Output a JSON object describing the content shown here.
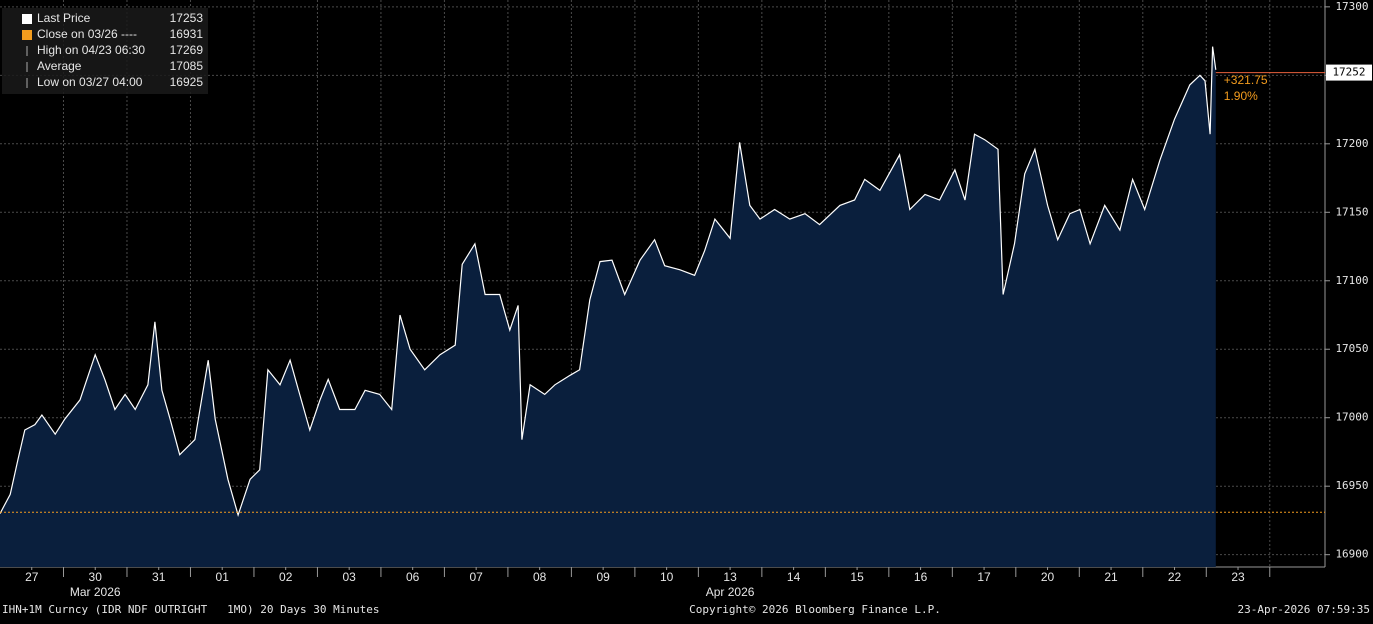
{
  "chart_data": {
    "type": "line",
    "series": [
      {
        "name": "Last Price",
        "color": "#ffffff",
        "fill": "#0a1f3d",
        "x": [
          0,
          0.16,
          0.28,
          0.39,
          0.55,
          0.66,
          0.87,
          1.02,
          1.26,
          1.5,
          1.65,
          1.81,
          1.97,
          2.13,
          2.33,
          2.44,
          2.55,
          2.68,
          2.83,
          3.07,
          3.28,
          3.39,
          3.59,
          3.75,
          3.94,
          4.09,
          4.22,
          4.41,
          4.57,
          4.72,
          4.88,
          5.04,
          5.17,
          5.35,
          5.59,
          5.75,
          5.98,
          6.17,
          6.3,
          6.46,
          6.69,
          6.93,
          7.17,
          7.28,
          7.48,
          7.64,
          7.87,
          8.03,
          8.16,
          8.22,
          8.35,
          8.58,
          8.74,
          8.98,
          9.13,
          9.29,
          9.45,
          9.64,
          9.84,
          10.08,
          10.31,
          10.47,
          10.71,
          10.94,
          11.1,
          11.26,
          11.5,
          11.65,
          11.81,
          11.97,
          12.2,
          12.44,
          12.68,
          12.91,
          13.23,
          13.46,
          13.62,
          13.86,
          14.17,
          14.33,
          14.57,
          14.8,
          15.04,
          15.2,
          15.35,
          15.51,
          15.72,
          15.8,
          15.98,
          16.14,
          16.3,
          16.5,
          16.66,
          16.85,
          17.01,
          17.17,
          17.4,
          17.64,
          17.84,
          18.03,
          18.27,
          18.5,
          18.74,
          18.9,
          18.98,
          19.06,
          19.1,
          19.15
        ],
        "values": [
          16930,
          16944,
          16969,
          16991,
          16995,
          17002,
          16988,
          16999,
          17013,
          17046,
          17028,
          17006,
          17017,
          17006,
          17024,
          17070,
          17020,
          16999,
          16973,
          16984,
          17042,
          16999,
          16955,
          16929,
          16955,
          16962,
          17035,
          17024,
          17042,
          17017,
          16991,
          17013,
          17028,
          17006,
          17006,
          17020,
          17017,
          17006,
          17075,
          17050,
          17035,
          17046,
          17053,
          17112,
          17127,
          17090,
          17090,
          17064,
          17082,
          16984,
          17024,
          17017,
          17024,
          17031,
          17035,
          17086,
          17114,
          17115,
          17090,
          17115,
          17130,
          17111,
          17108,
          17104,
          17122,
          17145,
          17131,
          17201,
          17155,
          17145,
          17152,
          17145,
          17149,
          17141,
          17155,
          17159,
          17174,
          17166,
          17192,
          17152,
          17163,
          17159,
          17181,
          17159,
          17207,
          17203,
          17196,
          17090,
          17127,
          17178,
          17196,
          17155,
          17130,
          17149,
          17152,
          17127,
          17155,
          17137,
          17174,
          17152,
          17188,
          17218,
          17243,
          17250,
          17246,
          17207,
          17271,
          17254
        ]
      }
    ],
    "legend": [
      {
        "name": "Last Price",
        "value": 17253,
        "color": "#ffffff"
      },
      {
        "name": "Close on 03/26 ----",
        "value": 16931,
        "color": "#f39c1e"
      },
      {
        "name": "High on 04/23 06:30",
        "value": 17269
      },
      {
        "name": "Average",
        "value": 17085
      },
      {
        "name": "Low on 03/27 04:00",
        "value": 16925
      }
    ],
    "last_price_tag": 17252,
    "change": "+321.75",
    "change_pct": "1.90%",
    "xlim": [
      0,
      20.87
    ],
    "ylim": [
      16891,
      17305
    ],
    "yticks": [
      16900,
      16950,
      17000,
      17050,
      17100,
      17150,
      17200,
      17250,
      17300
    ],
    "xticks": [
      {
        "value": 0.5,
        "label": "27"
      },
      {
        "value": 1.5,
        "label": "30"
      },
      {
        "value": 2.5,
        "label": "31"
      },
      {
        "value": 3.5,
        "label": "01"
      },
      {
        "value": 4.5,
        "label": "02"
      },
      {
        "value": 5.5,
        "label": "03"
      },
      {
        "value": 6.5,
        "label": "06"
      },
      {
        "value": 7.5,
        "label": "07"
      },
      {
        "value": 8.5,
        "label": "08"
      },
      {
        "value": 9.5,
        "label": "09"
      },
      {
        "value": 10.5,
        "label": "10"
      },
      {
        "value": 11.5,
        "label": "13"
      },
      {
        "value": 12.5,
        "label": "14"
      },
      {
        "value": 13.5,
        "label": "15"
      },
      {
        "value": 14.5,
        "label": "16"
      },
      {
        "value": 15.5,
        "label": "17"
      },
      {
        "value": 16.5,
        "label": "20"
      },
      {
        "value": 17.5,
        "label": "21"
      },
      {
        "value": 18.5,
        "label": "22"
      },
      {
        "value": 19.5,
        "label": "23"
      }
    ],
    "month_ticks": [
      {
        "value": 1.5,
        "label": "Mar 2026"
      },
      {
        "value": 11.5,
        "label": "Apr 2026"
      }
    ],
    "grid": true,
    "footer": {
      "left": "IHN+1M Curncy (IDR NDF OUTRIGHT   1MO) 20 Days 30 Minutes",
      "center": "Copyright© 2026 Bloomberg Finance L.P.",
      "right": "23-Apr-2026 07:59:35"
    }
  }
}
